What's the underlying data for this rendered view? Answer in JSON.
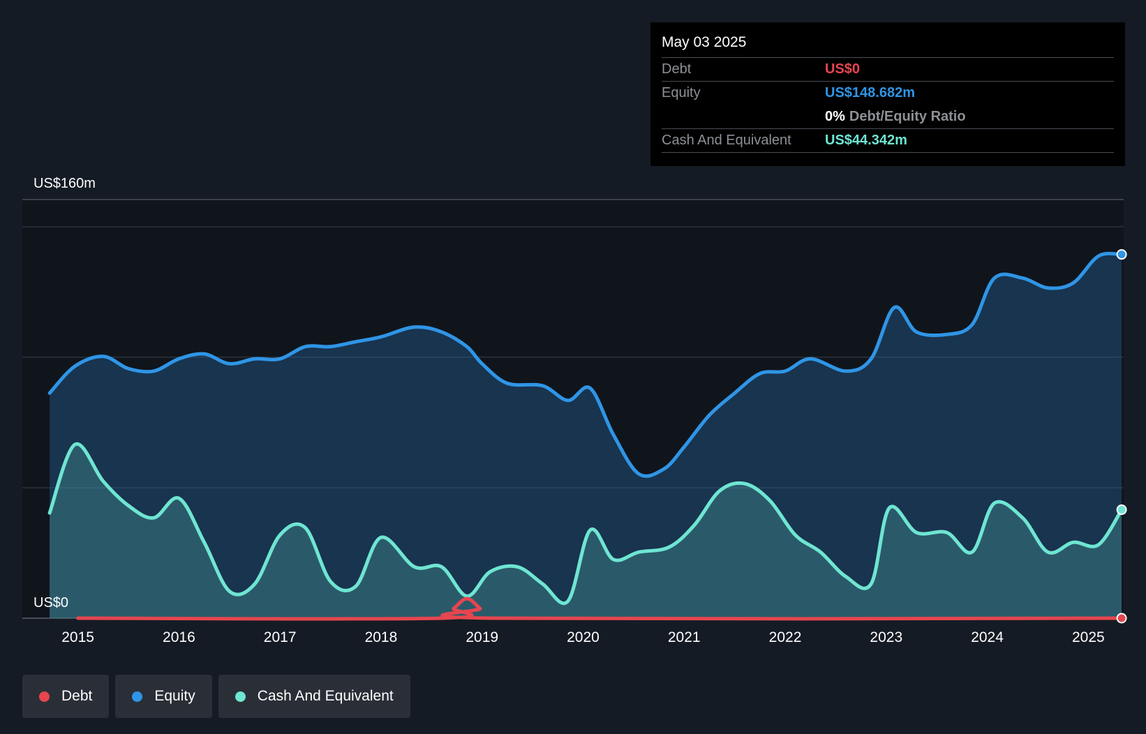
{
  "tooltip": {
    "date": "May 03 2025",
    "rows": [
      {
        "label": "Debt",
        "value": "US$0"
      },
      {
        "label": "Equity",
        "value": "US$148.682m"
      },
      {
        "ratio_value": "0%",
        "ratio_label": "Debt/Equity Ratio"
      },
      {
        "label": "Cash And Equivalent",
        "value": "US$44.342m"
      }
    ]
  },
  "legend": [
    {
      "label": "Debt",
      "color": "#e5464f"
    },
    {
      "label": "Equity",
      "color": "#2f95e6"
    },
    {
      "label": "Cash And Equivalent",
      "color": "#6fe5d2"
    }
  ],
  "chart_data": {
    "type": "area",
    "ylabel_top": "US$160m",
    "ylabel_bottom": "US$0",
    "ylim": [
      0,
      160
    ],
    "xlim": [
      2014.45,
      2025.35
    ],
    "x_ticks": [
      "2015",
      "2016",
      "2017",
      "2018",
      "2019",
      "2020",
      "2021",
      "2022",
      "2023",
      "2024",
      "2025"
    ],
    "gridlines": [
      0,
      53.3,
      106.7,
      160
    ],
    "series": [
      {
        "name": "Debt",
        "color": "#e5464f",
        "x": [
          2015.0,
          2018.6,
          2018.72,
          2018.85,
          2018.98,
          2019.1,
          2025.33
        ],
        "y": [
          0,
          0,
          4,
          8,
          4,
          0,
          0
        ]
      },
      {
        "name": "Equity",
        "color": "#2f95e6",
        "x": [
          2014.72,
          2014.97,
          2015.25,
          2015.5,
          2015.75,
          2016.0,
          2016.25,
          2016.5,
          2016.75,
          2017.0,
          2017.25,
          2017.5,
          2017.75,
          2018.0,
          2018.33,
          2018.6,
          2018.85,
          2019.0,
          2019.25,
          2019.6,
          2019.85,
          2020.07,
          2020.3,
          2020.55,
          2020.8,
          2021.0,
          2021.25,
          2021.5,
          2021.75,
          2022.0,
          2022.25,
          2022.6,
          2022.85,
          2023.08,
          2023.3,
          2023.6,
          2023.85,
          2024.07,
          2024.35,
          2024.6,
          2024.85,
          2025.1,
          2025.33
        ],
        "y": [
          92,
          103,
          107,
          102,
          101,
          106,
          108,
          104,
          106,
          106,
          111,
          111,
          113,
          115,
          119,
          117,
          111,
          104,
          96,
          95,
          89,
          94,
          75,
          59,
          61,
          70,
          83,
          92,
          100,
          101,
          106,
          101,
          106,
          127,
          117,
          116,
          120,
          139,
          139,
          135,
          137,
          148,
          148.682
        ]
      },
      {
        "name": "Cash And Equivalent",
        "color": "#6fe5d2",
        "x": [
          2014.72,
          2014.97,
          2015.25,
          2015.5,
          2015.75,
          2016.0,
          2016.25,
          2016.5,
          2016.75,
          2017.0,
          2017.25,
          2017.5,
          2017.75,
          2018.0,
          2018.33,
          2018.6,
          2018.85,
          2019.08,
          2019.35,
          2019.6,
          2019.85,
          2020.07,
          2020.3,
          2020.55,
          2020.85,
          2021.1,
          2021.35,
          2021.6,
          2021.85,
          2022.1,
          2022.35,
          2022.6,
          2022.85,
          2023.03,
          2023.3,
          2023.6,
          2023.85,
          2024.07,
          2024.35,
          2024.6,
          2024.85,
          2025.1,
          2025.33
        ],
        "y": [
          43,
          71,
          56,
          46,
          41,
          49,
          31,
          11,
          14,
          34,
          37,
          15,
          13,
          33,
          21,
          21,
          9,
          19,
          21,
          14,
          7,
          36,
          24,
          27,
          29,
          38,
          52,
          55,
          48,
          34,
          27,
          17,
          14,
          45,
          35,
          35,
          27,
          47,
          41,
          27,
          31,
          30,
          44.342
        ]
      }
    ]
  }
}
